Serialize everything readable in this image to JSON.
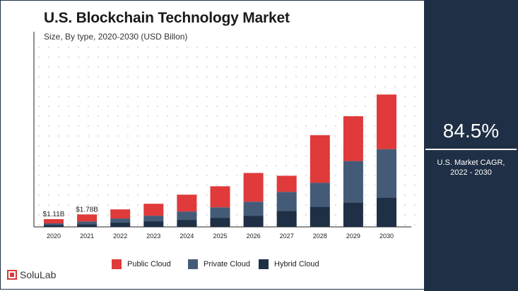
{
  "title": "U.S. Blockchain Technology Market",
  "subtitle": "Size, By type, 2020-2030 (USD Billon)",
  "cagr": {
    "value": "84.5%",
    "label_line1": "U.S. Market CAGR,",
    "label_line2": "2022 - 2030"
  },
  "logo": {
    "text": "SoluLab"
  },
  "colors": {
    "public": "#e03a3a",
    "private": "#445b78",
    "hybrid": "#1f2f45",
    "panel": "#1f2f45"
  },
  "chart_data": {
    "type": "bar",
    "stacked": true,
    "categories": [
      "2020",
      "2021",
      "2022",
      "2023",
      "2024",
      "2025",
      "2026",
      "2027",
      "2028",
      "2029",
      "2030"
    ],
    "series": [
      {
        "name": "Hybrid Cloud",
        "color": "#1f2f45",
        "values": [
          0.25,
          0.35,
          0.6,
          0.8,
          1.0,
          1.3,
          1.6,
          2.3,
          2.9,
          3.5,
          4.2
        ]
      },
      {
        "name": "Private Cloud",
        "color": "#445b78",
        "values": [
          0.25,
          0.43,
          0.6,
          0.8,
          1.2,
          1.5,
          2.0,
          2.7,
          3.4,
          5.9,
          6.9
        ]
      },
      {
        "name": "Public Cloud",
        "color": "#e03a3a",
        "values": [
          0.61,
          1.0,
          1.3,
          1.7,
          2.4,
          3.0,
          4.1,
          2.3,
          6.8,
          6.4,
          7.8
        ]
      }
    ],
    "data_labels": [
      {
        "category": "2020",
        "text": "$1.11B"
      },
      {
        "category": "2021",
        "text": "$1.78B"
      }
    ],
    "ylim": [
      0,
      19
    ],
    "grid": false,
    "legend_position": "bottom"
  }
}
